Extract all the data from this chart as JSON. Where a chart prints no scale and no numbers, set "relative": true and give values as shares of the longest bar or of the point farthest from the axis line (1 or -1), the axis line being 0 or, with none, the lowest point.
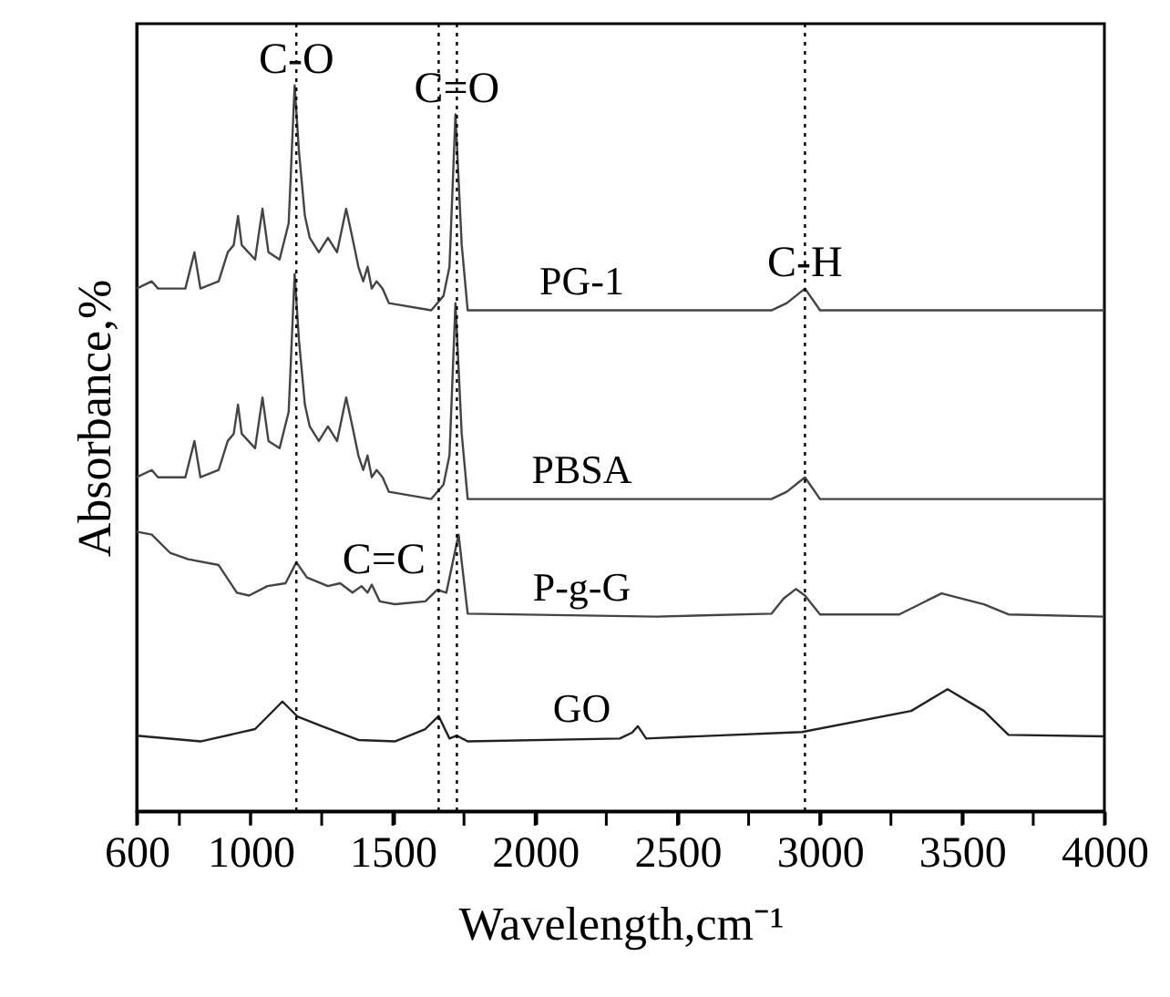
{
  "chart_data": {
    "type": "line",
    "relative": true,
    "xlabel": "Wavelength,cm⁻¹",
    "ylabel": "Absorbance,%",
    "xlim": [
      600,
      4000
    ],
    "xticks": [
      600,
      {
        "value": 750,
        "label": null
      },
      1000,
      {
        "value": 1250,
        "label": null
      },
      1500,
      {
        "value": 1750,
        "label": null
      },
      2000,
      {
        "value": 2250,
        "label": null
      },
      2500,
      {
        "value": 2750,
        "label": null
      },
      3000,
      {
        "value": 3250,
        "label": null
      },
      3500,
      {
        "value": 3750,
        "label": null
      },
      4000
    ],
    "grid": false,
    "marker": "none",
    "line_style": "solid",
    "series": [
      {
        "name": "PG-1",
        "color": "#444444",
        "x": [
          600,
          653,
          675,
          728,
          771,
          803,
          824,
          888,
          920,
          941,
          956,
          969,
          1016,
          1042,
          1063,
          1102,
          1134,
          1155,
          1170,
          1191,
          1208,
          1240,
          1272,
          1304,
          1336,
          1358,
          1379,
          1396,
          1411,
          1426,
          1443,
          1464,
          1486,
          1635,
          1678,
          1699,
          1720,
          1742,
          1763,
          2425,
          2830,
          2884,
          2948,
          3001,
          3449,
          4000
        ],
        "values": [
          0.72,
          0.73,
          0.72,
          0.72,
          0.72,
          0.77,
          0.72,
          0.73,
          0.77,
          0.78,
          0.82,
          0.78,
          0.76,
          0.83,
          0.77,
          0.76,
          0.81,
          1.0,
          0.91,
          0.82,
          0.79,
          0.77,
          0.79,
          0.77,
          0.83,
          0.79,
          0.75,
          0.73,
          0.75,
          0.72,
          0.73,
          0.72,
          0.7,
          0.69,
          0.71,
          0.75,
          0.96,
          0.78,
          0.69,
          0.69,
          0.69,
          0.7,
          0.72,
          0.69,
          0.69,
          0.69
        ]
      },
      {
        "name": "PBSA",
        "color": "#444444",
        "x": [
          600,
          653,
          675,
          728,
          771,
          803,
          824,
          888,
          920,
          941,
          956,
          969,
          1016,
          1042,
          1063,
          1102,
          1134,
          1155,
          1170,
          1191,
          1208,
          1240,
          1272,
          1304,
          1336,
          1358,
          1379,
          1396,
          1411,
          1426,
          1443,
          1464,
          1486,
          1635,
          1678,
          1699,
          1720,
          1742,
          1763,
          2425,
          2830,
          2884,
          2948,
          3001,
          3449,
          4000
        ],
        "values": [
          0.46,
          0.47,
          0.46,
          0.46,
          0.46,
          0.51,
          0.46,
          0.47,
          0.51,
          0.52,
          0.56,
          0.52,
          0.5,
          0.57,
          0.51,
          0.5,
          0.55,
          0.74,
          0.65,
          0.56,
          0.53,
          0.51,
          0.53,
          0.51,
          0.57,
          0.53,
          0.49,
          0.47,
          0.49,
          0.46,
          0.47,
          0.46,
          0.44,
          0.43,
          0.45,
          0.49,
          0.7,
          0.52,
          0.43,
          0.43,
          0.43,
          0.44,
          0.46,
          0.43,
          0.43,
          0.43
        ]
      },
      {
        "name": "P-g-G",
        "color": "#444444",
        "x": [
          600,
          653,
          717,
          781,
          888,
          952,
          995,
          1059,
          1123,
          1161,
          1198,
          1272,
          1315,
          1358,
          1390,
          1411,
          1426,
          1454,
          1507,
          1614,
          1656,
          1688,
          1731,
          1763,
          2425,
          2830,
          2873,
          2916,
          2948,
          3001,
          3279,
          3428,
          3577,
          3663,
          4000
        ],
        "values": [
          0.385,
          0.381,
          0.356,
          0.347,
          0.339,
          0.301,
          0.297,
          0.31,
          0.314,
          0.343,
          0.322,
          0.31,
          0.314,
          0.301,
          0.31,
          0.301,
          0.312,
          0.289,
          0.285,
          0.289,
          0.305,
          0.301,
          0.381,
          0.272,
          0.268,
          0.272,
          0.293,
          0.306,
          0.297,
          0.271,
          0.271,
          0.3,
          0.285,
          0.271,
          0.268
        ]
      },
      {
        "name": "GO",
        "color": "#222222",
        "x": [
          600,
          824,
          1016,
          1112,
          1166,
          1251,
          1379,
          1507,
          1614,
          1661,
          1699,
          1725,
          1763,
          2297,
          2340,
          2361,
          2390,
          2937,
          3321,
          3449,
          3577,
          3663,
          4000
        ],
        "values": [
          0.104,
          0.096,
          0.113,
          0.151,
          0.13,
          0.117,
          0.098,
          0.096,
          0.113,
          0.131,
          0.1,
          0.104,
          0.096,
          0.1,
          0.108,
          0.117,
          0.1,
          0.109,
          0.138,
          0.168,
          0.138,
          0.105,
          0.103
        ]
      }
    ],
    "ref_lines": [
      {
        "axis": "x",
        "value": 1161,
        "color": "#000000",
        "line_style": "dotted"
      },
      {
        "axis": "x",
        "value": 1661,
        "color": "#000000",
        "line_style": "dotted"
      },
      {
        "axis": "x",
        "value": 1725,
        "color": "#000000",
        "line_style": "dotted"
      },
      {
        "axis": "x",
        "value": 2948,
        "color": "#000000",
        "line_style": "dotted"
      }
    ],
    "annotations": [
      {
        "text": "C-O",
        "x": 1161,
        "y": 1.0
      },
      {
        "text": "C=O",
        "x": 1725,
        "y": 0.96
      },
      {
        "text": "C=C",
        "x": 1661,
        "y": 0.31
      },
      {
        "text": "C-H",
        "x": 2948,
        "y": 0.72
      }
    ]
  }
}
